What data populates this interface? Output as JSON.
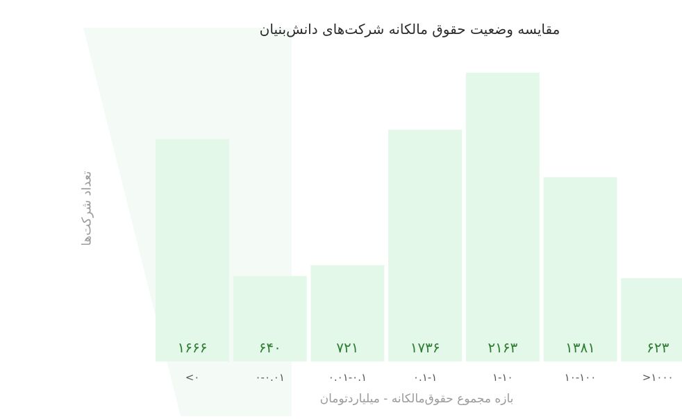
{
  "colors": {
    "bar": "#e3f8e8",
    "value_text": "#2e7d32",
    "tick_text": "#555555",
    "background_shape": "#f4fbf6"
  },
  "chart_data": {
    "type": "bar",
    "title": "مقایسه وضعیت حقوق مالکانه شرکت‌های دانش‌بنیان",
    "xlabel": "بازه مجموع حقوق‌مالکانه - میلیاردتومان",
    "ylabel": "تعداد شرکت‌ها",
    "categories": [
      "<۰",
      "۰-۰.۰۱",
      "۰.۰۱-۰.۱",
      "۰.۱-۱",
      "۱-۱۰",
      "۱۰-۱۰۰",
      ">۱۰۰۰"
    ],
    "values": [
      1666,
      640,
      721,
      1736,
      2163,
      1381,
      623
    ],
    "value_labels": [
      "۱۶۶۶",
      "۶۴۰",
      "۷۲۱",
      "۱۷۳۶",
      "۲۱۶۳",
      "۱۳۸۱",
      "۶۲۳"
    ],
    "ylim": [
      0,
      2500
    ],
    "grid": false,
    "legend": "none"
  }
}
